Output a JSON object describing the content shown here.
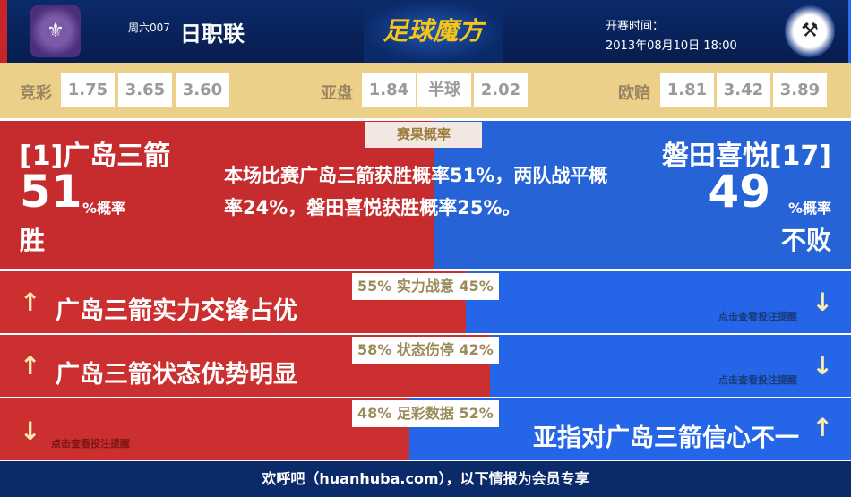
{
  "header": {
    "home_logo_icon": "sanfrecce-crest-icon",
    "away_logo_icon": "jubilo-crest-icon",
    "round": "周六007",
    "league": "日职联",
    "brand": "足球魔方",
    "kickoff_label": "开赛时间：",
    "kickoff_time": "2013年08月10日 18:00"
  },
  "odds": {
    "jingcai": {
      "label": "竞彩",
      "values": [
        "1.75",
        "3.65",
        "3.60"
      ]
    },
    "yapan": {
      "label": "亚盘",
      "values": [
        "1.84",
        "半球",
        "2.02"
      ]
    },
    "ouzhi": {
      "label": "欧赔",
      "values": [
        "1.81",
        "3.42",
        "3.89"
      ]
    }
  },
  "probability": {
    "tag": "赛果概率",
    "home": {
      "name": "[1]广岛三箭",
      "percent": "51",
      "unit": "%概率",
      "result": "胜"
    },
    "away": {
      "name": "磐田喜悦[17]",
      "percent": "49",
      "unit": "%概率",
      "result": "不败"
    },
    "summary": "本场比赛广岛三箭获胜概率51%，两队战平概率24%，磐田喜悦获胜概率25%。"
  },
  "rows": [
    {
      "label": "55% 实力战意 45%",
      "home_pct": 55,
      "text": "广岛三箭实力交锋占优",
      "hint": "点击查看投注提醒",
      "left_arrow": "↑",
      "right_arrow": "↓"
    },
    {
      "label": "58% 状态伤停 42%",
      "home_pct": 58,
      "text": "广岛三箭状态优势明显",
      "hint": "点击查看投注提醒",
      "left_arrow": "↑",
      "right_arrow": "↓"
    },
    {
      "label": "48% 足彩数据 52%",
      "home_pct": 48,
      "text": "亚指对广岛三箭信心不一",
      "hint": "点击查看投注提醒",
      "left_arrow": "↓",
      "right_arrow": "↑"
    }
  ],
  "colors": {
    "home": "#cb2f30",
    "away": "#2566e8",
    "header": "#0b2a6a",
    "odds_bg": "#ecd08a"
  },
  "footer": "欢呼吧（huanhuba.com），以下情报为会员专享"
}
